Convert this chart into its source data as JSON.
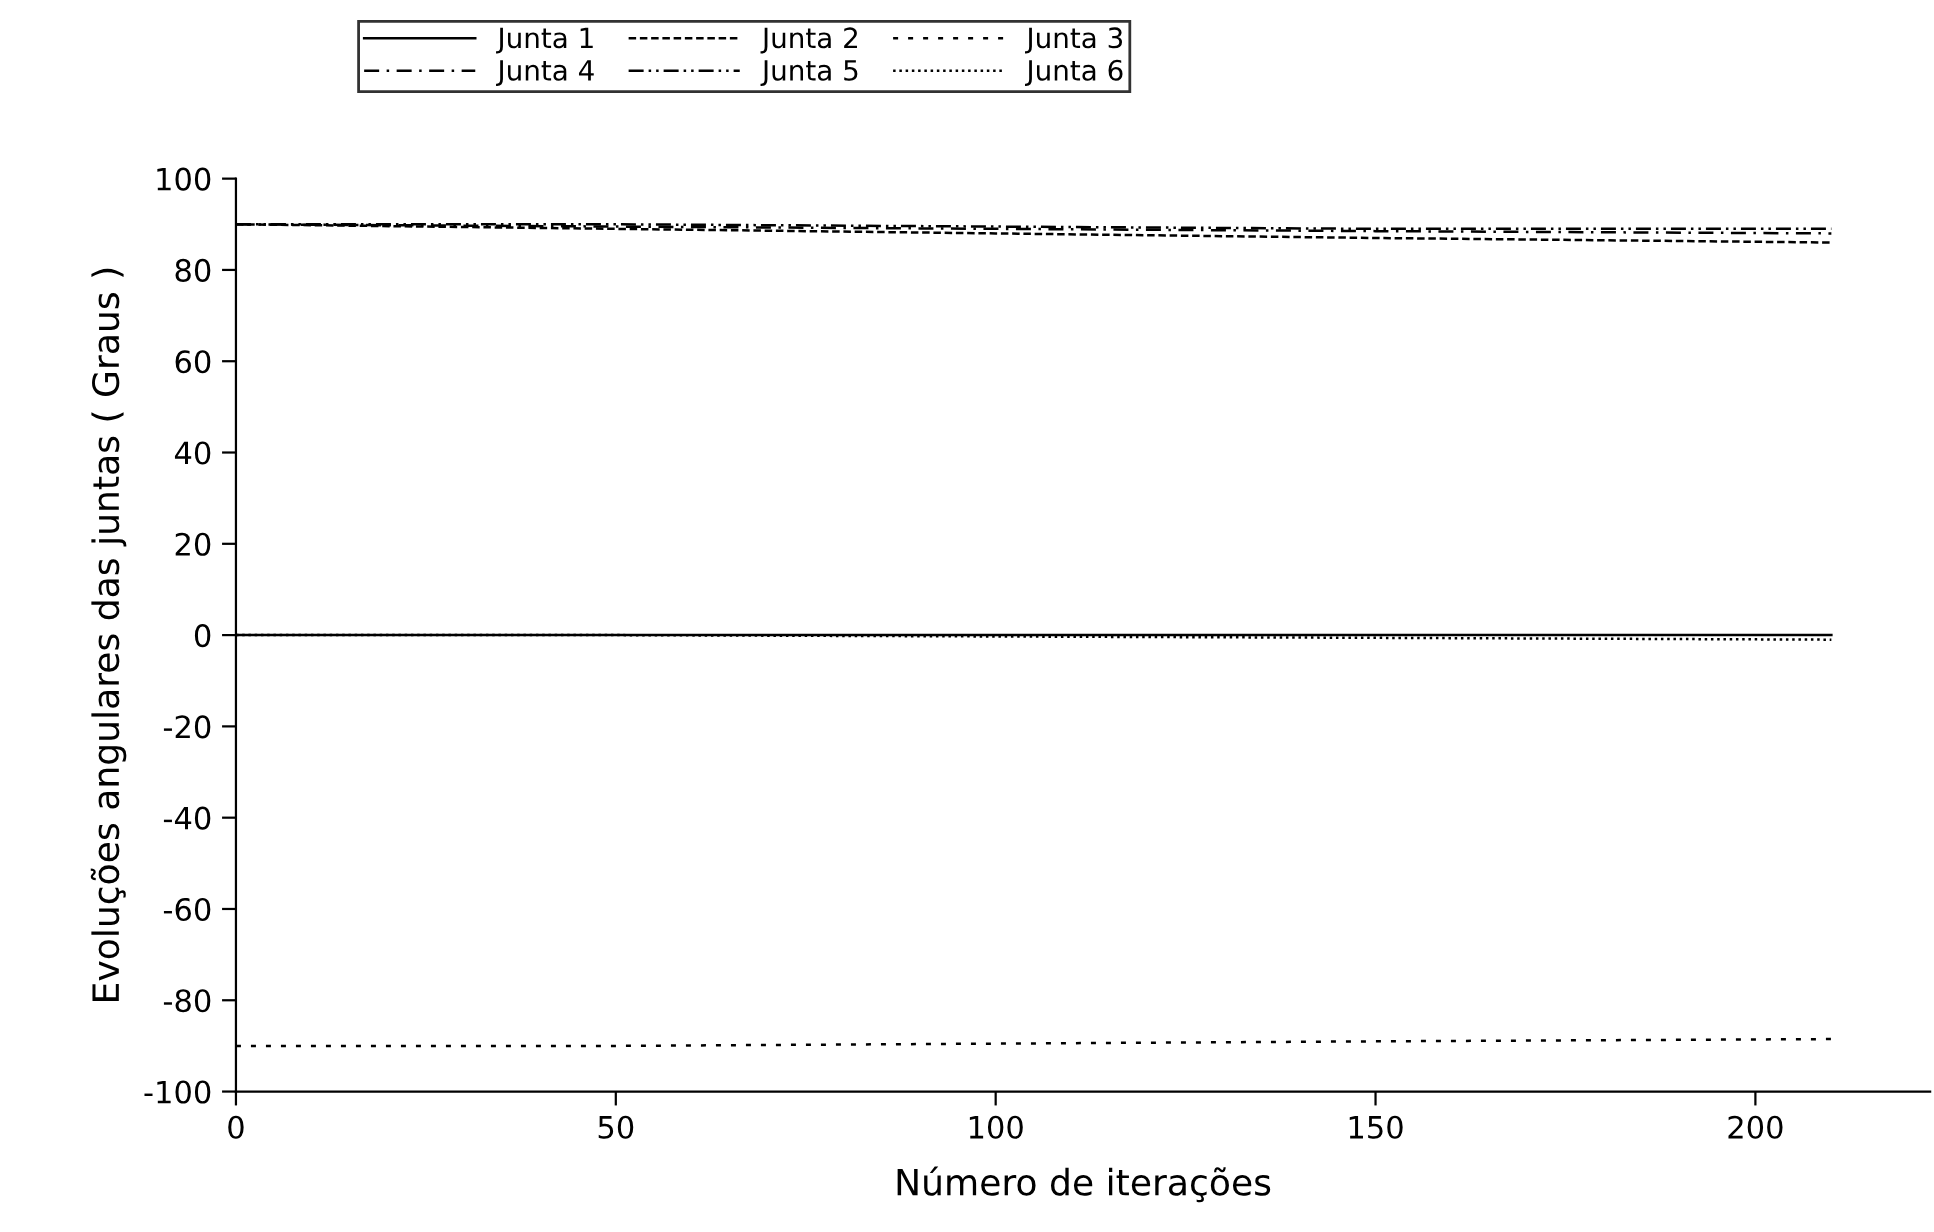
{
  "chart_data": {
    "type": "line",
    "xlabel": "Número de iterações",
    "ylabel": "Evoluções angulares das juntas ( Graus )",
    "xlim": [
      0,
      223
    ],
    "xticks": [
      0,
      50,
      100,
      150,
      200
    ],
    "ylim": [
      -100,
      100
    ],
    "yticks": [
      -100,
      -80,
      -60,
      -40,
      -20,
      0,
      20,
      40,
      60,
      80,
      100
    ],
    "legend": "top",
    "grid": false,
    "series": [
      {
        "name": "Junta 1",
        "color": "#000000",
        "line_style": "solid",
        "x": [
          0,
          50,
          100,
          150,
          210
        ],
        "values": [
          0,
          0,
          0,
          0,
          0
        ]
      },
      {
        "name": "Junta 2",
        "color": "#000000",
        "line_style": "dashed",
        "x": [
          0,
          50,
          100,
          150,
          210
        ],
        "values": [
          90,
          89,
          88,
          87,
          86
        ]
      },
      {
        "name": "Junta 3",
        "color": "#000000",
        "line_style": "dotted",
        "x": [
          0,
          50,
          100,
          150,
          210
        ],
        "values": [
          -90,
          -90,
          -89.5,
          -89,
          -88.5
        ]
      },
      {
        "name": "Junta 4",
        "color": "#000000",
        "line_style": "dashdot",
        "x": [
          0,
          50,
          100,
          150,
          210
        ],
        "values": [
          90,
          89.5,
          89,
          88.5,
          88
        ]
      },
      {
        "name": "Junta 5",
        "color": "#000000",
        "line_style": "dashdotdot",
        "x": [
          0,
          50,
          100,
          150,
          210
        ],
        "values": [
          90,
          90,
          89.5,
          89,
          89
        ]
      },
      {
        "name": "Junta 6",
        "color": "#000000",
        "line_style": "densedot",
        "x": [
          0,
          50,
          100,
          150,
          210
        ],
        "values": [
          0,
          0,
          -0.3,
          -0.6,
          -1
        ]
      }
    ]
  }
}
